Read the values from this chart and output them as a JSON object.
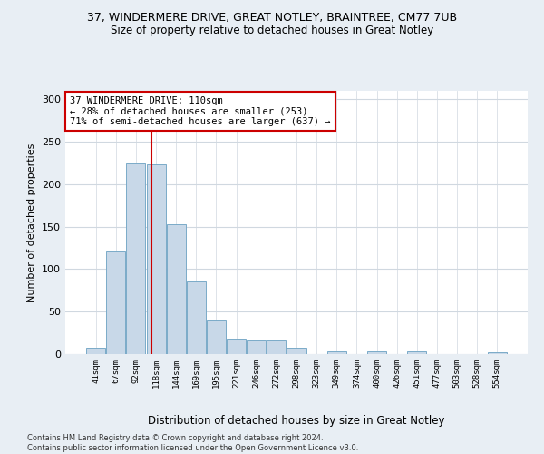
{
  "title1": "37, WINDERMERE DRIVE, GREAT NOTLEY, BRAINTREE, CM77 7UB",
  "title2": "Size of property relative to detached houses in Great Notley",
  "xlabel": "Distribution of detached houses by size in Great Notley",
  "ylabel": "Number of detached properties",
  "footnote": "Contains HM Land Registry data © Crown copyright and database right 2024.\nContains public sector information licensed under the Open Government Licence v3.0.",
  "bin_labels": [
    "41sqm",
    "67sqm",
    "92sqm",
    "118sqm",
    "144sqm",
    "169sqm",
    "195sqm",
    "221sqm",
    "246sqm",
    "272sqm",
    "298sqm",
    "323sqm",
    "349sqm",
    "374sqm",
    "400sqm",
    "426sqm",
    "451sqm",
    "477sqm",
    "503sqm",
    "528sqm",
    "554sqm"
  ],
  "bar_values": [
    7,
    122,
    224,
    223,
    153,
    86,
    41,
    18,
    17,
    17,
    8,
    0,
    3,
    0,
    3,
    0,
    3,
    0,
    0,
    0,
    2
  ],
  "bar_color": "#c8d8e8",
  "bar_edge_color": "#7aaac8",
  "vline_x": 2.75,
  "vline_color": "#cc0000",
  "annotation_text": "37 WINDERMERE DRIVE: 110sqm\n← 28% of detached houses are smaller (253)\n71% of semi-detached houses are larger (637) →",
  "annotation_box_color": "#ffffff",
  "annotation_box_edge": "#cc0000",
  "ylim": [
    0,
    310
  ],
  "yticks": [
    0,
    50,
    100,
    150,
    200,
    250,
    300
  ],
  "bg_color": "#e8eef4",
  "plot_bg_color": "#ffffff"
}
